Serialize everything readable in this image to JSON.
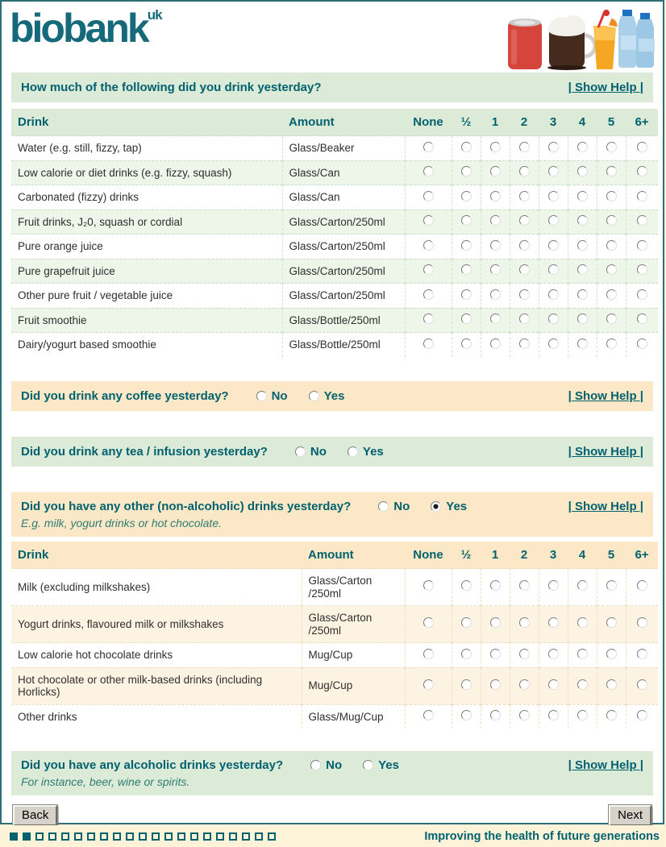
{
  "colors": {
    "teal": "#01616f",
    "green_bar": "#dcead8",
    "orange_bar": "#fce8c6",
    "footer_bg": "#fdf3d9",
    "logo_teal": "#15697b"
  },
  "header": {
    "logo": "biobank",
    "logo_sup": "uk",
    "images": [
      "red-soda-can",
      "hot-chocolate-mug",
      "orange-juice-glass",
      "water-bottles"
    ]
  },
  "main_question": {
    "text": "How much of the following did you drink yesterday?",
    "show_help": "| Show Help |"
  },
  "count_headers": [
    "None",
    "½",
    "1",
    "2",
    "3",
    "4",
    "5",
    "6+"
  ],
  "table1": {
    "drink_header": "Drink",
    "amount_header": "Amount",
    "rows": [
      {
        "drink": "Water (e.g. still, fizzy, tap)",
        "amount": "Glass/Beaker"
      },
      {
        "drink": "Low calorie or diet drinks (e.g. fizzy, squash)",
        "amount": "Glass/Can"
      },
      {
        "drink": "Carbonated (fizzy) drinks",
        "amount": "Glass/Can"
      },
      {
        "drink": "Fruit drinks, J₂0, squash or cordial",
        "amount": "Glass/Carton/250ml"
      },
      {
        "drink": "Pure orange juice",
        "amount": "Glass/Carton/250ml"
      },
      {
        "drink": "Pure grapefruit juice",
        "amount": "Glass/Carton/250ml"
      },
      {
        "drink": "Other pure fruit / vegetable juice",
        "amount": "Glass/Carton/250ml"
      },
      {
        "drink": "Fruit smoothie",
        "amount": "Glass/Bottle/250ml"
      },
      {
        "drink": "Dairy/yogurt based smoothie",
        "amount": "Glass/Bottle/250ml"
      }
    ]
  },
  "coffee": {
    "question": "Did you drink any coffee yesterday?",
    "no_label": "No",
    "yes_label": "Yes",
    "selected": "",
    "show_help": "| Show Help |"
  },
  "tea": {
    "question": "Did you drink any tea / infusion yesterday?",
    "no_label": "No",
    "yes_label": "Yes",
    "selected": "",
    "show_help": "| Show Help |"
  },
  "other": {
    "question": "Did you have any other (non-alcoholic) drinks yesterday?",
    "subtitle": "E.g. milk, yogurt drinks or hot chocolate.",
    "no_label": "No",
    "yes_label": "Yes",
    "selected": "Yes",
    "show_help": "| Show Help |"
  },
  "table2": {
    "drink_header": "Drink",
    "amount_header": "Amount",
    "rows": [
      {
        "drink": "Milk (excluding milkshakes)",
        "amount": "Glass/Carton /250ml"
      },
      {
        "drink": "Yogurt drinks, flavoured milk or milkshakes",
        "amount": "Glass/Carton /250ml"
      },
      {
        "drink": "Low calorie hot chocolate drinks",
        "amount": "Mug/Cup"
      },
      {
        "drink": "Hot chocolate or other milk-based drinks (including Horlicks)",
        "amount": "Mug/Cup"
      },
      {
        "drink": "Other drinks",
        "amount": "Glass/Mug/Cup"
      }
    ]
  },
  "alcohol": {
    "question": "Did you have any alcoholic drinks yesterday?",
    "subtitle": "For instance, beer, wine or spirits.",
    "no_label": "No",
    "yes_label": "Yes",
    "selected": "",
    "show_help": "| Show Help |"
  },
  "buttons": {
    "back": "Back",
    "next": "Next"
  },
  "footer": {
    "motto": "Improving the health of future generations",
    "progress_total": 21,
    "progress_filled": 2
  }
}
